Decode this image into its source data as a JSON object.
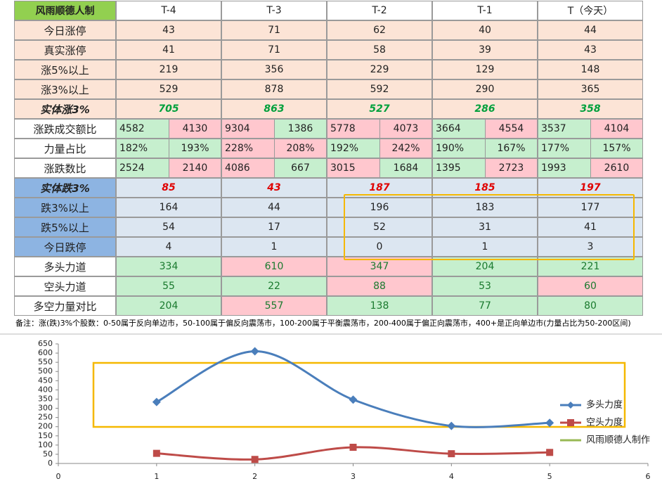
{
  "table": {
    "header": [
      "风雨顺德人制",
      "T-4",
      "T-3",
      "T-2",
      "T-1",
      "T（今天）"
    ],
    "rows": [
      {
        "label": "今日涨停",
        "values": [
          "43",
          "71",
          "62",
          "40",
          "44"
        ]
      },
      {
        "label": "真实涨停",
        "values": [
          "41",
          "71",
          "58",
          "39",
          "43"
        ]
      },
      {
        "label": "涨5%以上",
        "values": [
          "219",
          "356",
          "229",
          "129",
          "148"
        ]
      },
      {
        "label": "涨3%以上",
        "values": [
          "529",
          "878",
          "592",
          "290",
          "365"
        ]
      },
      {
        "label": "实体涨3%",
        "values": [
          "705",
          "863",
          "527",
          "286",
          "358"
        ]
      },
      {
        "label": "涨跌成交额比",
        "values": [
          [
            "4582",
            "4130"
          ],
          [
            "9304",
            "1386"
          ],
          [
            "5778",
            "4073"
          ],
          [
            "3664",
            "4554"
          ],
          [
            "3537",
            "4104"
          ]
        ]
      },
      {
        "label": "力量占比",
        "values": [
          [
            "182%",
            "193%"
          ],
          [
            "228%",
            "208%"
          ],
          [
            "192%",
            "242%"
          ],
          [
            "190%",
            "167%"
          ],
          [
            "177%",
            "157%"
          ]
        ]
      },
      {
        "label": "涨跌数比",
        "values": [
          [
            "2524",
            "2140"
          ],
          [
            "4086",
            "667"
          ],
          [
            "3015",
            "1684"
          ],
          [
            "1395",
            "2723"
          ],
          [
            "1993",
            "2610"
          ]
        ]
      },
      {
        "label": "实体跌3%",
        "values": [
          "85",
          "43",
          "187",
          "185",
          "197"
        ]
      },
      {
        "label": "跌3%以上",
        "values": [
          "164",
          "44",
          "196",
          "183",
          "177"
        ]
      },
      {
        "label": "跌5%以上",
        "values": [
          "54",
          "17",
          "52",
          "31",
          "41"
        ]
      },
      {
        "label": "今日跌停",
        "values": [
          "4",
          "1",
          "0",
          "1",
          "3"
        ]
      },
      {
        "label": "多头力道",
        "values": [
          "334",
          "610",
          "347",
          "204",
          "221"
        ]
      },
      {
        "label": "空头力道",
        "values": [
          "55",
          "22",
          "88",
          "53",
          "60"
        ]
      },
      {
        "label": "多空力量对比",
        "values": [
          "204",
          "557",
          "138",
          "77",
          "80"
        ]
      }
    ],
    "note": "备注：涨(跌)3%个股数：0-50属于反向单边市，50-100属于偏反向震荡市，100-200属于平衡震荡市，200-400属于偏正向震荡市，400+是正向单边市(力量占比为50-200区间)"
  },
  "chart_data": {
    "type": "line",
    "x": [
      1,
      2,
      3,
      4,
      5
    ],
    "series": [
      {
        "name": "多头力度",
        "color": "#4a7ebb",
        "marker": "diamond",
        "values": [
          334,
          610,
          347,
          204,
          221
        ]
      },
      {
        "name": "空头力度",
        "color": "#be4b48",
        "marker": "square",
        "values": [
          55,
          22,
          88,
          53,
          60
        ]
      },
      {
        "name": "风雨顺德人制作",
        "color": "#98b954",
        "values": [
          null,
          null,
          null,
          null,
          null
        ]
      }
    ],
    "xlim": [
      0,
      6
    ],
    "xticks": [
      0,
      1,
      2,
      3,
      4,
      5,
      6
    ],
    "ylim": [
      0,
      650
    ],
    "yticks": [
      0,
      50,
      100,
      150,
      200,
      250,
      300,
      350,
      400,
      450,
      500,
      550,
      600,
      650
    ],
    "legend": "right"
  }
}
